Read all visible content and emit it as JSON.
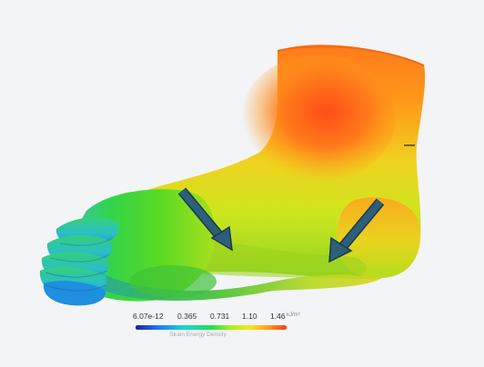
{
  "legend": {
    "ticks": [
      "6.07e-12",
      "0.365",
      "0.731",
      "1.10",
      "1.46"
    ],
    "unit": "kJ/m³",
    "title": "Strain Energy Density",
    "gradient": [
      "#1e1ea8",
      "#1e78ff",
      "#19d6d6",
      "#1ee14b",
      "#b4ee1e",
      "#f3e61e",
      "#ff9a1e",
      "#ff3a1e"
    ]
  },
  "colors": {
    "background": "#f3f4f6",
    "arrow": "#2c5f7a",
    "high_strain": "#ff5a1e",
    "low_strain": "#1e9aff"
  }
}
